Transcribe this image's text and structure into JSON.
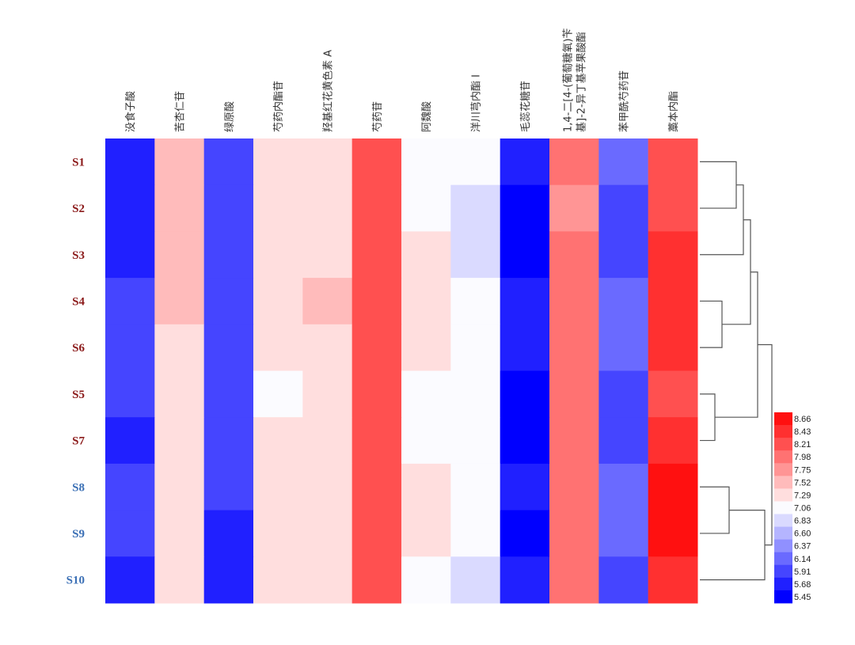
{
  "chart_data": {
    "type": "heatmap",
    "title": "",
    "columns": [
      "没食子酸",
      "苦杏仁苷",
      "绿原酸",
      "芍药内酯苷",
      "羟基红花黄色素 A",
      "芍药苷",
      "阿魏酸",
      "洋川芎内酯 I",
      "毛蕊花糖苷",
      "1,4-二[4-(葡萄糖氧)苄基]-2-异丁基苹果酸酯",
      "苯甲酰芍药苷",
      "藁本内酯"
    ],
    "column_label_lines": [
      [
        "没食子酸"
      ],
      [
        "苦杏仁苷"
      ],
      [
        "绿原酸"
      ],
      [
        "芍药内酯苷"
      ],
      [
        "羟基红花黄色素 A"
      ],
      [
        "芍药苷"
      ],
      [
        "阿魏酸"
      ],
      [
        "洋川芎内酯 I"
      ],
      [
        "毛蕊花糖苷"
      ],
      [
        "1,4-二[4-(葡萄糖氧)苄",
        "基]-2-异丁基苹果酸酯"
      ],
      [
        "苯甲酰芍药苷"
      ],
      [
        "藁本内酯"
      ]
    ],
    "rows": [
      "S1",
      "S2",
      "S3",
      "S4",
      "S6",
      "S5",
      "S7",
      "S8",
      "S9",
      "S10"
    ],
    "row_groups": [
      "group1",
      "group1",
      "group1",
      "group1",
      "group1",
      "group1",
      "group1",
      "group2",
      "group2",
      "group2"
    ],
    "row_group_colors": {
      "group1": "#8B1A1A",
      "group2": "#3A6FB5"
    },
    "values": [
      [
        5.8,
        7.64,
        6.03,
        7.41,
        7.41,
        8.32,
        7.18,
        7.18,
        5.8,
        8.1,
        6.26,
        8.32
      ],
      [
        5.8,
        7.64,
        6.03,
        7.41,
        7.41,
        8.32,
        7.18,
        6.95,
        5.57,
        7.87,
        6.03,
        8.32
      ],
      [
        5.8,
        7.64,
        6.03,
        7.41,
        7.41,
        8.32,
        7.41,
        6.95,
        5.57,
        8.1,
        6.03,
        8.55
      ],
      [
        6.03,
        7.64,
        6.03,
        7.41,
        7.64,
        8.32,
        7.41,
        7.18,
        5.8,
        8.1,
        6.26,
        8.55
      ],
      [
        6.03,
        7.41,
        6.03,
        7.41,
        7.41,
        8.32,
        7.41,
        7.18,
        5.8,
        8.1,
        6.26,
        8.55
      ],
      [
        6.03,
        7.41,
        6.03,
        7.18,
        7.41,
        8.32,
        7.18,
        7.18,
        5.57,
        8.1,
        6.03,
        8.32
      ],
      [
        5.8,
        7.41,
        6.03,
        7.41,
        7.41,
        8.32,
        7.18,
        7.18,
        5.57,
        8.1,
        6.03,
        8.55
      ],
      [
        6.03,
        7.41,
        6.03,
        7.41,
        7.41,
        8.32,
        7.41,
        7.18,
        5.8,
        8.1,
        6.26,
        8.78
      ],
      [
        6.03,
        7.41,
        5.8,
        7.41,
        7.41,
        8.32,
        7.41,
        7.18,
        5.57,
        8.1,
        6.26,
        8.78
      ],
      [
        5.8,
        7.41,
        5.8,
        7.41,
        7.41,
        8.32,
        7.18,
        6.95,
        5.8,
        8.1,
        6.03,
        8.55
      ]
    ],
    "color_scale": {
      "min": 5.45,
      "max": 8.89,
      "low_color": "#0000FF",
      "mid_color": "#FFFFFF",
      "high_color": "#FF0000",
      "legend_ticks": [
        8.66,
        8.43,
        8.21,
        7.98,
        7.75,
        7.52,
        7.29,
        7.06,
        6.83,
        6.6,
        6.37,
        6.14,
        5.91,
        5.68,
        5.45
      ],
      "legend_colors": [
        "#FF1010",
        "#FF3030",
        "#FF5050",
        "#FF7272",
        "#FF9595",
        "#FFBBBB",
        "#FFDEDE",
        "#FBFBFF",
        "#DADAFF",
        "#B5B5FF",
        "#9090FF",
        "#6A6AFF",
        "#4545FF",
        "#2020FF",
        "#0000FF"
      ],
      "legend_placement": "right"
    },
    "row_dendrogram": {
      "merges": [
        {
          "left": "S5",
          "right": "S7",
          "height": 1
        },
        {
          "left": "S4",
          "right": "S6",
          "height": 2
        },
        {
          "left": "S8",
          "right": "S9",
          "height": 3
        },
        {
          "left": "S1",
          "right": "S2",
          "height": 4
        },
        {
          "left": "S1-S2",
          "right": "S3",
          "height": 5
        },
        {
          "left": "S1-S2-S3",
          "right": "S4-S6",
          "height": 6
        },
        {
          "left": "S1-S2-S3-S4-S6",
          "right": "S5-S7",
          "height": 7
        },
        {
          "left": "S8-S9",
          "right": "S10",
          "height": 8
        },
        {
          "left": "S1-S2-S3-S4-S6-S5-S7",
          "right": "S8-S9-S10",
          "height": 9
        }
      ],
      "placement": "right"
    }
  }
}
